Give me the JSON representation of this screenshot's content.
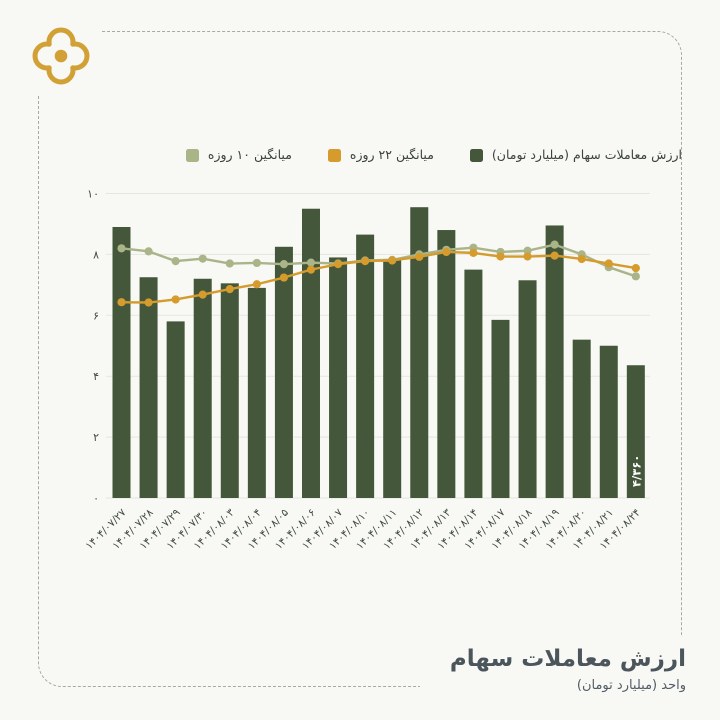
{
  "page": {
    "background": "#f8f8f5",
    "frame_border_color": "#a8a8a8"
  },
  "logo": {
    "color": "#d2a136"
  },
  "legend": {
    "items": [
      {
        "label": "میانگین ۱۰ روزه",
        "color": "#a9b489"
      },
      {
        "label": "میانگین ۲۲ روزه",
        "color": "#d59b2c"
      },
      {
        "label": "ارزش معاملات سهام (میلیارد تومان)",
        "color": "#44573a"
      }
    ]
  },
  "footer": {
    "title": "ارزش معاملات سهام",
    "subtitle": "واحد (میلیارد تومان)"
  },
  "chart_data": {
    "type": "bar",
    "title": "ارزش معاملات سهام",
    "ylabel": "",
    "xlabel": "",
    "unit_label": "واحد (میلیارد تومان)",
    "categories": [
      "۱۴۰۴/۰۷/۲۷",
      "۱۴۰۴/۰۷/۲۸",
      "۱۴۰۴/۰۷/۲۹",
      "۱۴۰۴/۰۷/۳۰",
      "۱۴۰۴/۰۸/۰۳",
      "۱۴۰۴/۰۸/۰۴",
      "۱۴۰۴/۰۸/۰۵",
      "۱۴۰۴/۰۸/۰۶",
      "۱۴۰۴/۰۸/۰۷",
      "۱۴۰۴/۰۸/۱۰",
      "۱۴۰۴/۰۸/۱۱",
      "۱۴۰۴/۰۸/۱۲",
      "۱۴۰۴/۰۸/۱۳",
      "۱۴۰۴/۰۸/۱۴",
      "۱۴۰۴/۰۸/۱۷",
      "۱۴۰۴/۰۸/۱۸",
      "۱۴۰۴/۰۸/۱۹",
      "۱۴۰۴/۰۸/۲۰",
      "۱۴۰۴/۰۸/۲۱",
      "۱۴۰۴/۰۸/۲۴"
    ],
    "series": [
      {
        "name": "ارزش معاملات سهام (میلیارد تومان)",
        "type": "bar",
        "color": "#44573a",
        "values": [
          8.9,
          7.25,
          5.8,
          7.2,
          7.05,
          6.9,
          8.25,
          9.5,
          7.9,
          8.65,
          7.85,
          9.55,
          8.8,
          7.5,
          5.85,
          7.15,
          8.95,
          5.2,
          5.0,
          4.36
        ]
      },
      {
        "name": "میانگین ۲۲ روزه",
        "type": "line",
        "color": "#d59b2c",
        "values": [
          6.43,
          6.42,
          6.52,
          6.68,
          6.86,
          7.02,
          7.24,
          7.5,
          7.68,
          7.78,
          7.8,
          7.92,
          8.08,
          8.05,
          7.93,
          7.93,
          7.96,
          7.85,
          7.7,
          7.55
        ]
      },
      {
        "name": "میانگین ۱۰ روزه",
        "type": "line",
        "color": "#a9b489",
        "values": [
          8.2,
          8.1,
          7.78,
          7.86,
          7.7,
          7.72,
          7.68,
          7.73,
          7.7,
          7.8,
          7.82,
          8.0,
          8.15,
          8.22,
          8.08,
          8.12,
          8.32,
          8.0,
          7.58,
          7.28
        ]
      }
    ],
    "ylim": [
      0,
      10
    ],
    "yticks": [
      0,
      2,
      4,
      6,
      8,
      10
    ],
    "ytick_labels": [
      "۰",
      "۲",
      "۴",
      "۶",
      "۸",
      "۱۰"
    ],
    "grid": true,
    "legend_position": "top",
    "annotations": [
      {
        "target_index": 19,
        "text": "۴/۳۶۰"
      }
    ]
  }
}
